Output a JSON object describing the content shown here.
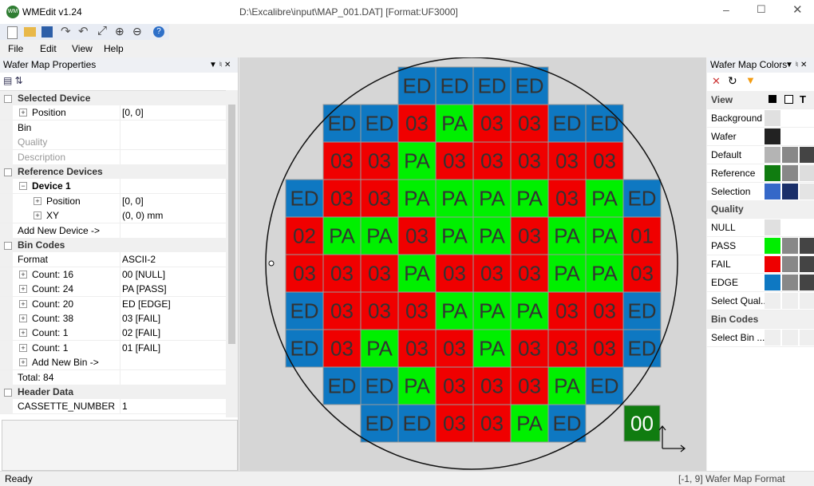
{
  "title_bar": {
    "app": "WMEdit v1.24",
    "path": "D:\\Excalibre\\input\\MAP_001.DAT] [Format:UF3000]"
  },
  "menu": [
    "File",
    "Edit",
    "View",
    "Help"
  ],
  "properties": {
    "title": "Wafer Map Properties",
    "rows": [
      {
        "label": "Selected Device"
      },
      {
        "label": "Position",
        "value": "[0, 0]"
      },
      {
        "label": "Bin"
      },
      {
        "label": "Quality"
      },
      {
        "label": "Description"
      },
      {
        "label": "Reference Devices"
      },
      {
        "label": "Device 1"
      },
      {
        "label": "Position",
        "value": "[0, 0]"
      },
      {
        "label": "XY",
        "value": "(0, 0) mm"
      },
      {
        "label": "Add New Device ->"
      },
      {
        "label": "Bin Codes"
      },
      {
        "label": "Format",
        "value": "ASCII-2"
      },
      {
        "label": "Count: 16",
        "value": "00 [NULL]"
      },
      {
        "label": "Count: 24",
        "value": "PA [PASS]"
      },
      {
        "label": "Count: 20",
        "value": "ED [EDGE]"
      },
      {
        "label": "Count: 38",
        "value": "03 [FAIL]"
      },
      {
        "label": "Count: 1",
        "value": "02 [FAIL]"
      },
      {
        "label": "Count: 1",
        "value": "01 [FAIL]"
      },
      {
        "label": "Add New Bin ->"
      },
      {
        "label": "Total: 84"
      },
      {
        "label": "Header Data"
      },
      {
        "label": "CASSETTE_NUMBER",
        "value": "1"
      }
    ]
  },
  "wafer_map": {
    "rows": [
      [
        null,
        null,
        null,
        "ED",
        "ED",
        "ED",
        "ED",
        null,
        null,
        null
      ],
      [
        null,
        "ED",
        "ED",
        "03",
        "PA",
        "03",
        "03",
        "ED",
        "ED",
        null
      ],
      [
        null,
        "03",
        "03",
        "PA",
        "03",
        "03",
        "03",
        "03",
        "03",
        null
      ],
      [
        "ED",
        "03",
        "03",
        "PA",
        "PA",
        "PA",
        "PA",
        "03",
        "PA",
        "ED"
      ],
      [
        "02",
        "PA",
        "PA",
        "03",
        "PA",
        "PA",
        "03",
        "PA",
        "PA",
        "01"
      ],
      [
        "03",
        "03",
        "03",
        "PA",
        "03",
        "03",
        "03",
        "PA",
        "PA",
        "03"
      ],
      [
        "ED",
        "03",
        "03",
        "03",
        "PA",
        "PA",
        "PA",
        "03",
        "03",
        "ED"
      ],
      [
        "ED",
        "03",
        "PA",
        "03",
        "03",
        "PA",
        "03",
        "03",
        "03",
        "ED"
      ],
      [
        null,
        "ED",
        "ED",
        "PA",
        "03",
        "03",
        "03",
        "PA",
        "ED",
        null
      ],
      [
        null,
        null,
        "ED",
        "ED",
        "03",
        "03",
        "PA",
        "ED",
        null,
        null
      ]
    ],
    "bin_colors": {
      "ED": "#0e78c2",
      "PA": "#00f000",
      "03": "#f00000",
      "02": "#f00000",
      "01": "#f00000"
    },
    "reference_cell": "00"
  },
  "colors_panel": {
    "title": "Wafer Map Colors",
    "rows": [
      "View",
      "Background",
      "Wafer",
      "Default",
      "Reference",
      "Selection",
      "Quality",
      "NULL",
      "PASS",
      "FAIL",
      "EDGE",
      "Select Qual...",
      "Bin Codes",
      "Select Bin ..."
    ]
  },
  "status_bar": {
    "left": "Ready",
    "right": "[-1, 9] Wafer Map Format"
  }
}
